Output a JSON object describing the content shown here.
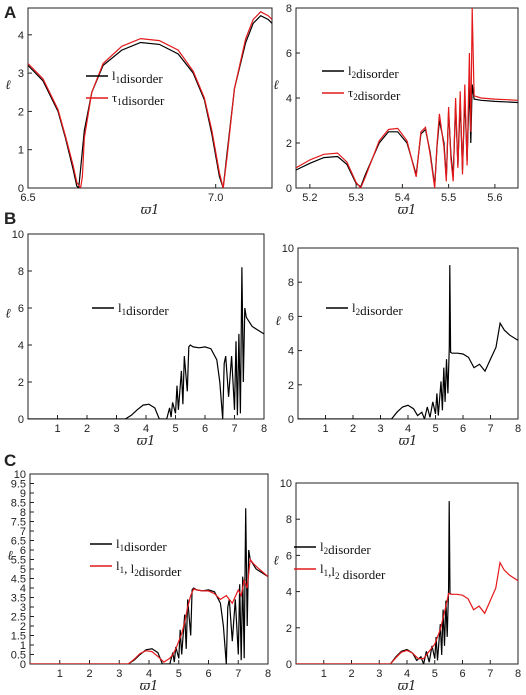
{
  "figure": {
    "panel_labels": [
      "A",
      "B",
      "C"
    ]
  },
  "chart_data": [
    {
      "type": "line",
      "panel": "A",
      "xlabel": "ϖ1",
      "ylabel": "ℓ",
      "xlim": [
        6.5,
        7.15
      ],
      "ylim": [
        0,
        4.7
      ],
      "xticks": [
        {
          "v": 6.5,
          "t": "6.5"
        },
        {
          "v": 7.0,
          "t": "7.0"
        }
      ],
      "yticks": [
        0,
        1,
        2,
        3,
        4
      ],
      "legend_position": "center-left",
      "series": [
        {
          "name": "l1disorder",
          "color": "#000000",
          "x": [
            6.5,
            6.54,
            6.58,
            6.6,
            6.62,
            6.63,
            6.635,
            6.64,
            6.65,
            6.67,
            6.7,
            6.75,
            6.8,
            6.85,
            6.9,
            6.94,
            6.97,
            6.99,
            7.01,
            7.02,
            7.03,
            7.05,
            7.08,
            7.1,
            7.12,
            7.14,
            7.15
          ],
          "y": [
            3.2,
            2.8,
            2.0,
            1.3,
            0.5,
            0.05,
            0.0,
            0.5,
            1.5,
            2.5,
            3.2,
            3.6,
            3.8,
            3.75,
            3.5,
            3.0,
            2.3,
            1.4,
            0.3,
            0.0,
            0.9,
            2.6,
            3.8,
            4.3,
            4.5,
            4.4,
            4.3
          ]
        },
        {
          "name": "τ1disorder",
          "color": "#e31a1c",
          "x": [
            6.5,
            6.54,
            6.58,
            6.6,
            6.62,
            6.63,
            6.64,
            6.645,
            6.65,
            6.67,
            6.7,
            6.75,
            6.8,
            6.85,
            6.9,
            6.94,
            6.97,
            6.99,
            7.01,
            7.02,
            7.03,
            7.05,
            7.08,
            7.1,
            7.12,
            7.14,
            7.15
          ],
          "y": [
            3.25,
            2.85,
            2.05,
            1.35,
            0.6,
            0.15,
            0.0,
            0.3,
            1.3,
            2.5,
            3.25,
            3.7,
            3.9,
            3.85,
            3.6,
            3.05,
            2.35,
            1.5,
            0.4,
            0.0,
            0.8,
            2.6,
            3.9,
            4.4,
            4.6,
            4.5,
            4.4
          ]
        }
      ]
    },
    {
      "type": "line",
      "panel": "A",
      "xlabel": "ϖ1",
      "ylabel": "ℓ",
      "xlim": [
        5.17,
        5.65
      ],
      "ylim": [
        0,
        8
      ],
      "xticks": [
        {
          "v": 5.2,
          "t": "5.2"
        },
        {
          "v": 5.3,
          "t": "5.3"
        },
        {
          "v": 5.4,
          "t": "5.4"
        },
        {
          "v": 5.5,
          "t": "5.5"
        },
        {
          "v": 5.6,
          "t": "5.6"
        }
      ],
      "yticks": [
        0,
        2,
        4,
        6,
        8
      ],
      "legend_position": "top-right",
      "series": [
        {
          "name": "l2disorder",
          "color": "#000000",
          "x": [
            5.17,
            5.2,
            5.23,
            5.26,
            5.28,
            5.3,
            5.31,
            5.32,
            5.35,
            5.37,
            5.39,
            5.41,
            5.43,
            5.44,
            5.45,
            5.46,
            5.47,
            5.475,
            5.48,
            5.49,
            5.495,
            5.5,
            5.505,
            5.51,
            5.515,
            5.52,
            5.525,
            5.53,
            5.535,
            5.54,
            5.545,
            5.548,
            5.551,
            5.555,
            5.57,
            5.6,
            5.65
          ],
          "y": [
            0.8,
            1.1,
            1.35,
            1.4,
            1.05,
            0.2,
            0.05,
            0.6,
            2.0,
            2.5,
            2.5,
            2.0,
            0.6,
            2.4,
            2.6,
            1.6,
            0.1,
            1.9,
            3.0,
            2.0,
            0.4,
            3.4,
            1.5,
            0.5,
            3.7,
            1.0,
            3.8,
            0.8,
            4.0,
            1.2,
            4.6,
            2.0,
            4.6,
            3.95,
            3.9,
            3.85,
            3.8
          ]
        },
        {
          "name": "τ2disorder",
          "color": "#e31a1c",
          "x": [
            5.17,
            5.2,
            5.23,
            5.26,
            5.28,
            5.3,
            5.31,
            5.32,
            5.35,
            5.37,
            5.39,
            5.41,
            5.43,
            5.44,
            5.45,
            5.46,
            5.47,
            5.475,
            5.48,
            5.49,
            5.495,
            5.5,
            5.505,
            5.51,
            5.515,
            5.52,
            5.525,
            5.53,
            5.535,
            5.54,
            5.545,
            5.548,
            5.551,
            5.555,
            5.57,
            5.6,
            5.65
          ],
          "y": [
            0.9,
            1.25,
            1.5,
            1.55,
            1.15,
            0.25,
            0.0,
            0.5,
            2.1,
            2.6,
            2.65,
            2.1,
            0.5,
            2.5,
            2.7,
            1.5,
            0.0,
            2.0,
            3.3,
            1.8,
            0.3,
            3.6,
            1.3,
            0.3,
            4.0,
            0.9,
            4.3,
            0.6,
            4.6,
            1.0,
            6.0,
            2.5,
            8.0,
            4.1,
            4.0,
            3.95,
            3.9
          ]
        }
      ]
    },
    {
      "type": "line",
      "panel": "B",
      "xlabel": "ϖ1",
      "ylabel": "ℓ",
      "xlim": [
        0,
        8
      ],
      "ylim": [
        0,
        10
      ],
      "xticks": [
        {
          "v": 1,
          "t": "1"
        },
        {
          "v": 2,
          "t": "2"
        },
        {
          "v": 3,
          "t": "3"
        },
        {
          "v": 4,
          "t": "4"
        },
        {
          "v": 5,
          "t": "5"
        },
        {
          "v": 6,
          "t": "6"
        },
        {
          "v": 7,
          "t": "7"
        },
        {
          "v": 8,
          "t": "8"
        }
      ],
      "yticks": [
        0,
        2,
        4,
        6,
        8,
        10
      ],
      "legend_position": "center-left",
      "series": [
        {
          "name": "l1disorder",
          "color": "#000000",
          "x": [
            0,
            3.3,
            3.5,
            3.7,
            3.9,
            4.1,
            4.3,
            4.45,
            4.7,
            4.8,
            4.85,
            4.9,
            5.0,
            5.05,
            5.1,
            5.2,
            5.25,
            5.3,
            5.4,
            5.45,
            5.5,
            5.6,
            5.8,
            6.0,
            6.2,
            6.4,
            6.5,
            6.6,
            6.65,
            6.7,
            6.8,
            6.9,
            7.0,
            7.05,
            7.1,
            7.15,
            7.2,
            7.25,
            7.3,
            7.35,
            7.4,
            7.6,
            7.8,
            8.0
          ],
          "y": [
            0,
            0,
            0.2,
            0.5,
            0.75,
            0.8,
            0.6,
            0.0,
            0.0,
            0.6,
            0.1,
            0.9,
            0.3,
            1.8,
            0.5,
            2.6,
            0.8,
            3.4,
            1.5,
            3.9,
            4.0,
            3.9,
            3.85,
            3.9,
            3.8,
            3.2,
            2.0,
            0.0,
            3.0,
            3.4,
            1.2,
            3.4,
            0.5,
            4.2,
            0.2,
            4.6,
            0.3,
            8.2,
            2.0,
            6.0,
            5.5,
            5.0,
            4.8,
            4.6
          ]
        }
      ]
    },
    {
      "type": "line",
      "panel": "B",
      "xlabel": "ϖ1",
      "ylabel": "ℓ",
      "xlim": [
        0,
        8
      ],
      "ylim": [
        0,
        10
      ],
      "xticks": [
        {
          "v": 1,
          "t": "1"
        },
        {
          "v": 2,
          "t": "2"
        },
        {
          "v": 3,
          "t": "3"
        },
        {
          "v": 4,
          "t": "4"
        },
        {
          "v": 5,
          "t": "5"
        },
        {
          "v": 6,
          "t": "6"
        },
        {
          "v": 7,
          "t": "7"
        },
        {
          "v": 8,
          "t": "8"
        }
      ],
      "yticks": [
        0,
        2,
        4,
        6,
        8,
        10
      ],
      "legend_position": "center-left",
      "series": [
        {
          "name": "l2disorder",
          "color": "#000000",
          "x": [
            0,
            3.4,
            3.6,
            3.8,
            4.0,
            4.2,
            4.35,
            4.5,
            4.6,
            4.7,
            4.8,
            4.9,
            5.0,
            5.05,
            5.1,
            5.2,
            5.25,
            5.3,
            5.35,
            5.4,
            5.45,
            5.5,
            5.52,
            5.55,
            5.6,
            5.8,
            6.0,
            6.2,
            6.4,
            6.6,
            6.8,
            7.0,
            7.2,
            7.35,
            7.5,
            7.7,
            8.0
          ],
          "y": [
            0,
            0,
            0.4,
            0.7,
            0.8,
            0.6,
            0.2,
            0.4,
            0.0,
            0.7,
            0.1,
            1.0,
            0.3,
            1.5,
            0.2,
            2.2,
            0.5,
            3.0,
            1.0,
            3.5,
            1.5,
            4.2,
            9.0,
            3.9,
            3.85,
            3.85,
            3.8,
            3.6,
            3.0,
            3.2,
            2.8,
            3.5,
            4.2,
            5.6,
            5.2,
            4.9,
            4.6
          ]
        }
      ]
    },
    {
      "type": "line",
      "panel": "C",
      "xlabel": "ϖ1",
      "ylabel": "ℓ",
      "xlim": [
        0,
        8
      ],
      "ylim": [
        0,
        10
      ],
      "xticks": [
        {
          "v": 1,
          "t": "1"
        },
        {
          "v": 2,
          "t": "2"
        },
        {
          "v": 3,
          "t": "3"
        },
        {
          "v": 4,
          "t": "4"
        },
        {
          "v": 5,
          "t": "5"
        },
        {
          "v": 6,
          "t": "6"
        },
        {
          "v": 7,
          "t": "7"
        },
        {
          "v": 8,
          "t": "8"
        }
      ],
      "yticks": [
        0,
        0.5,
        1,
        1.5,
        2,
        2.5,
        3,
        3.5,
        4,
        4.5,
        5,
        5.5,
        6,
        6.5,
        7,
        7.5,
        8,
        8.5,
        9,
        9.5,
        10
      ],
      "ytick_labels": [
        "0",
        "0.5",
        "1",
        "1.5",
        "2",
        "2.5",
        "3",
        "3.5",
        "4",
        "4.5",
        "5",
        "5.5",
        "6",
        "6.5",
        "7",
        "7.5",
        "8",
        "8.5",
        "9",
        "9.5",
        "10"
      ],
      "legend_position": "center-left",
      "series": [
        {
          "name": "l1disorder",
          "color": "#000000",
          "x": [
            0,
            3.3,
            3.5,
            3.7,
            3.9,
            4.1,
            4.3,
            4.45,
            4.7,
            4.8,
            4.85,
            4.9,
            5.0,
            5.05,
            5.1,
            5.2,
            5.25,
            5.3,
            5.4,
            5.45,
            5.5,
            5.6,
            5.8,
            6.0,
            6.2,
            6.4,
            6.5,
            6.6,
            6.65,
            6.7,
            6.8,
            6.9,
            7.0,
            7.05,
            7.1,
            7.15,
            7.2,
            7.25,
            7.3,
            7.35,
            7.4,
            7.6,
            7.8,
            8.0
          ],
          "y": [
            0,
            0,
            0.2,
            0.5,
            0.75,
            0.8,
            0.6,
            0.0,
            0.0,
            0.6,
            0.1,
            0.9,
            0.3,
            1.8,
            0.5,
            2.6,
            0.8,
            3.4,
            1.5,
            3.9,
            4.0,
            3.9,
            3.85,
            3.9,
            3.8,
            3.2,
            2.0,
            0.0,
            3.0,
            3.4,
            1.2,
            3.4,
            0.5,
            4.2,
            0.2,
            4.6,
            0.3,
            8.2,
            2.0,
            6.0,
            5.5,
            5.0,
            4.8,
            4.6
          ]
        },
        {
          "name": "l1, l2disorder",
          "color": "#e31a1c",
          "x": [
            0,
            3.3,
            3.5,
            3.7,
            3.9,
            4.1,
            4.3,
            4.5,
            4.7,
            4.8,
            4.9,
            5.0,
            5.1,
            5.2,
            5.3,
            5.4,
            5.5,
            5.6,
            5.8,
            6.0,
            6.2,
            6.4,
            6.6,
            6.8,
            7.0,
            7.1,
            7.2,
            7.3,
            7.4,
            7.5,
            7.7,
            8.0
          ],
          "y": [
            0,
            0,
            0.25,
            0.55,
            0.7,
            0.65,
            0.4,
            0.1,
            0.3,
            0.5,
            0.8,
            1.2,
            1.6,
            2.2,
            3.0,
            3.6,
            3.95,
            3.9,
            3.85,
            3.85,
            3.7,
            3.4,
            3.6,
            3.2,
            3.9,
            3.6,
            4.4,
            4.0,
            5.5,
            5.3,
            5.0,
            4.6
          ]
        }
      ]
    },
    {
      "type": "line",
      "panel": "C",
      "xlabel": "ϖ1",
      "ylabel": "ℓ",
      "xlim": [
        0,
        8
      ],
      "ylim": [
        0,
        10
      ],
      "xticks": [
        {
          "v": 1,
          "t": "1"
        },
        {
          "v": 2,
          "t": "2"
        },
        {
          "v": 3,
          "t": "3"
        },
        {
          "v": 4,
          "t": "4"
        },
        {
          "v": 5,
          "t": "5"
        },
        {
          "v": 6,
          "t": "6"
        },
        {
          "v": 7,
          "t": "7"
        },
        {
          "v": 8,
          "t": "8"
        }
      ],
      "yticks": [
        0,
        2,
        4,
        6,
        8,
        10
      ],
      "legend_position": "center-left",
      "series": [
        {
          "name": "l2disorder",
          "color": "#000000",
          "x": [
            0,
            3.4,
            3.6,
            3.8,
            4.0,
            4.2,
            4.35,
            4.5,
            4.6,
            4.7,
            4.8,
            4.9,
            5.0,
            5.05,
            5.1,
            5.2,
            5.25,
            5.3,
            5.35,
            5.4,
            5.45,
            5.5,
            5.52,
            5.55,
            5.6
          ],
          "y": [
            0,
            0,
            0.4,
            0.7,
            0.8,
            0.6,
            0.2,
            0.4,
            0.0,
            0.7,
            0.1,
            1.0,
            0.3,
            1.5,
            0.2,
            2.2,
            0.5,
            3.0,
            1.0,
            3.5,
            1.5,
            4.2,
            9.0,
            3.9,
            3.85
          ]
        },
        {
          "name": "l1,l2 disorder",
          "color": "#e31a1c",
          "x": [
            0,
            3.4,
            3.6,
            3.8,
            4.0,
            4.2,
            4.4,
            4.6,
            4.8,
            5.0,
            5.2,
            5.4,
            5.5,
            5.6,
            5.8,
            6.0,
            6.2,
            6.4,
            6.6,
            6.8,
            7.0,
            7.2,
            7.35,
            7.5,
            7.7,
            8.0
          ],
          "y": [
            0,
            0,
            0.35,
            0.65,
            0.75,
            0.6,
            0.3,
            0.3,
            0.7,
            1.1,
            1.9,
            3.2,
            3.9,
            3.85,
            3.85,
            3.8,
            3.6,
            3.0,
            3.2,
            2.8,
            3.5,
            4.2,
            5.6,
            5.2,
            4.9,
            4.6
          ]
        }
      ]
    }
  ]
}
